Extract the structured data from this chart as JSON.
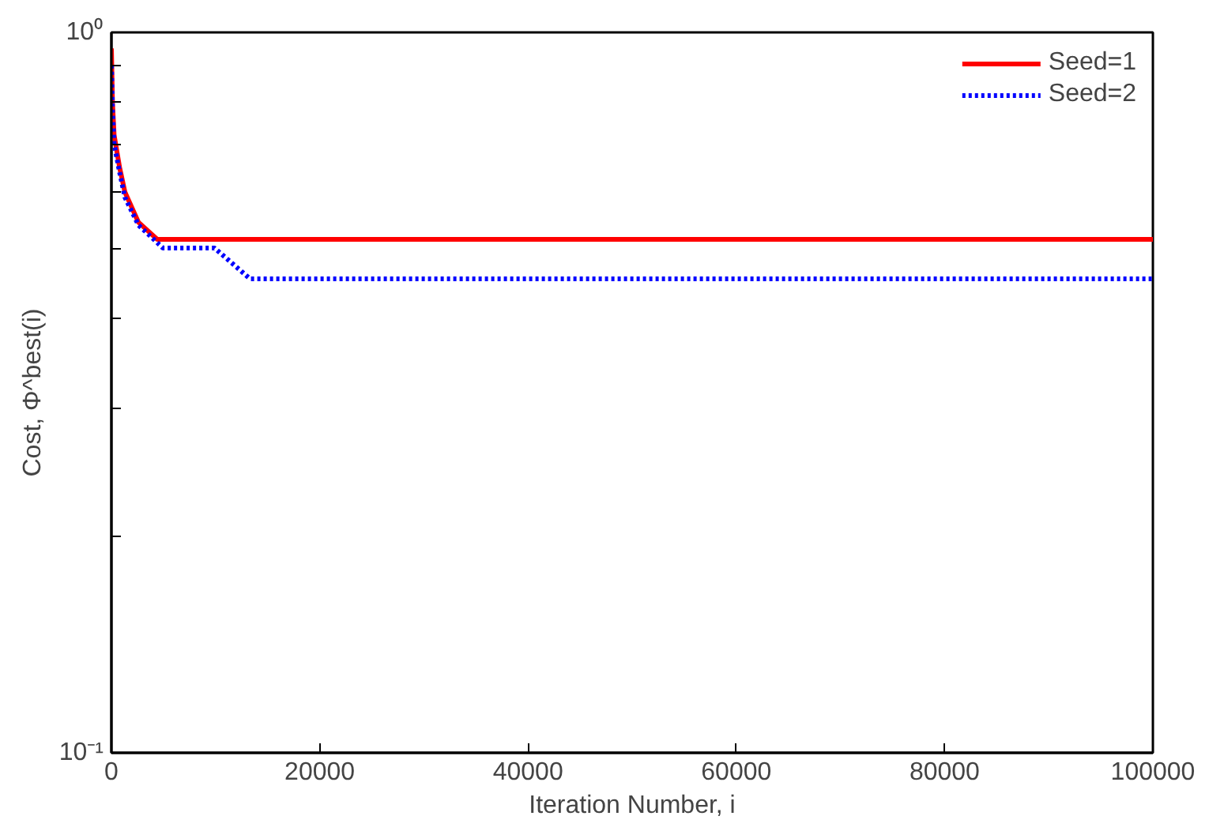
{
  "chart_data": {
    "type": "line",
    "xlabel": "Iteration Number, i",
    "ylabel": "Cost, Φ^best(i)",
    "log": "y",
    "grid": false,
    "legend": "top right",
    "marker": "none",
    "xlim": [
      0,
      100000
    ],
    "xticks": [
      0,
      20000,
      40000,
      60000,
      80000,
      100000
    ],
    "ylim": [
      0.1,
      1
    ],
    "yticks": [
      {
        "value": 0.1,
        "label": "10⁻¹"
      },
      {
        "value": 0.2,
        "label": null
      },
      {
        "value": 0.3,
        "label": null
      },
      {
        "value": 0.4,
        "label": null
      },
      {
        "value": 0.5,
        "label": null
      },
      {
        "value": 0.6,
        "label": null
      },
      {
        "value": 0.7,
        "label": null
      },
      {
        "value": 0.8,
        "label": null
      },
      {
        "value": 0.9,
        "label": null
      },
      {
        "value": 1,
        "label": "10⁰"
      }
    ],
    "series": [
      {
        "name": "Seed=1",
        "color": "#ff0000",
        "line_style": "solid",
        "x": [
          0,
          100,
          260,
          780,
          1300,
          2600,
          4400,
          100000
        ],
        "values": [
          0.95,
          0.8,
          0.72,
          0.65,
          0.6,
          0.545,
          0.516,
          0.516
        ]
      },
      {
        "name": "Seed=2",
        "color": "#0000ff",
        "line_style": "dotted",
        "x": [
          0,
          100,
          260,
          780,
          1300,
          2600,
          4950,
          9900,
          13300,
          100000
        ],
        "values": [
          0.9,
          0.78,
          0.7,
          0.64,
          0.59,
          0.54,
          0.502,
          0.502,
          0.455,
          0.455
        ]
      }
    ]
  }
}
